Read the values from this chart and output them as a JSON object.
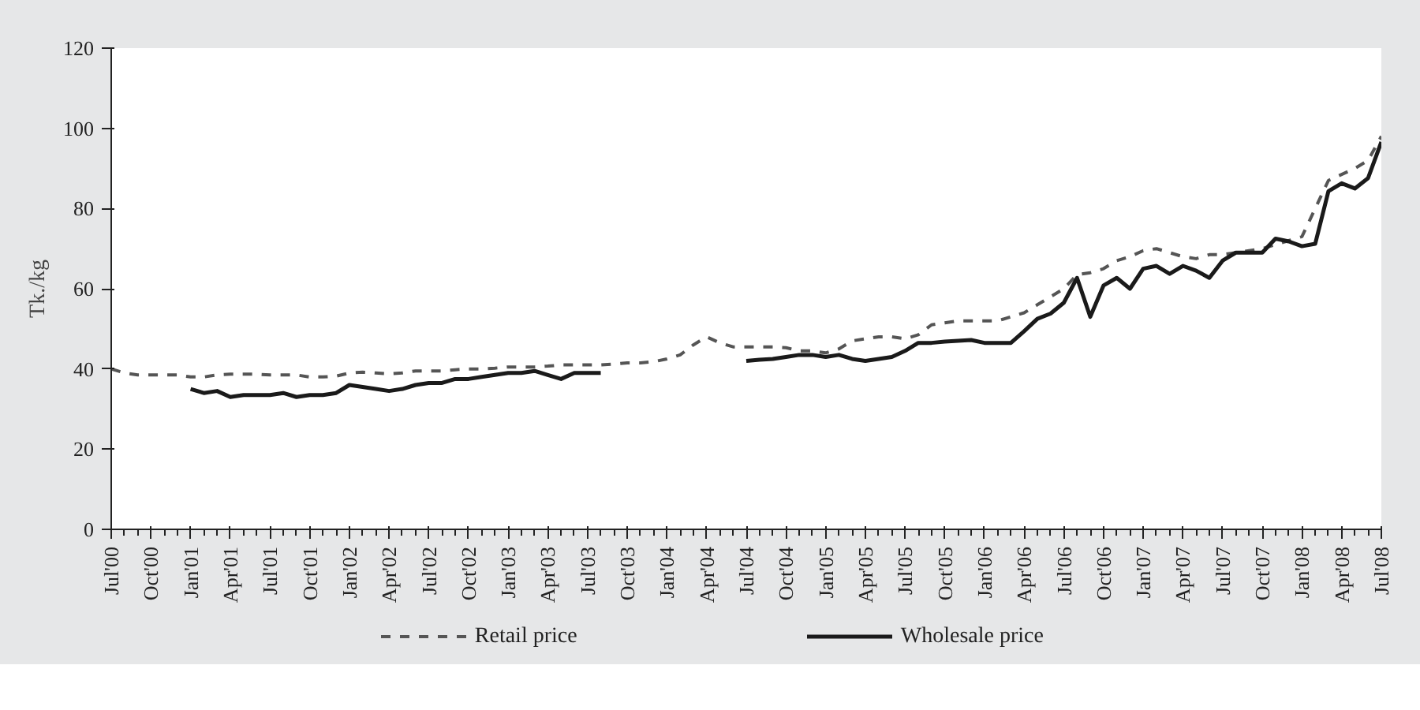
{
  "chart_data": {
    "type": "line",
    "ylabel": "Tk./kg",
    "categories": [
      "Jul'00",
      null,
      null,
      "Oct'00",
      null,
      null,
      "Jan'01",
      null,
      null,
      "Apr'01",
      null,
      null,
      "Jul'01",
      null,
      null,
      "Oct'01",
      null,
      null,
      "Jan'02",
      null,
      null,
      "Apr'02",
      null,
      null,
      "Jul'02",
      null,
      null,
      "Oct'02",
      null,
      null,
      "Jan'03",
      null,
      null,
      "Apr'03",
      null,
      null,
      "Jul'03",
      null,
      null,
      "Oct'03",
      null,
      null,
      "Jan'04",
      null,
      null,
      "Apr'04",
      null,
      null,
      "Jul'04",
      null,
      null,
      "Oct'04",
      null,
      null,
      "Jan'05",
      null,
      null,
      "Apr'05",
      null,
      null,
      "Jul'05",
      null,
      null,
      "Oct'05",
      null,
      null,
      "Jan'06",
      null,
      null,
      "Apr'06",
      null,
      null,
      "Jul'06",
      null,
      null,
      "Oct'06",
      null,
      null,
      "Jan'07",
      null,
      null,
      "Apr'07",
      null,
      null,
      "Jul'07",
      null,
      null,
      "Oct'07",
      null,
      null,
      "Jan'08",
      null,
      null,
      "Apr'08",
      null,
      null,
      "Jul'08"
    ],
    "series": [
      {
        "name": "Retail price",
        "color": "#555555",
        "line_style": "dashed",
        "values": [
          40,
          39,
          38.5,
          38.5,
          38.5,
          38.5,
          38,
          38,
          38.5,
          38.7,
          38.7,
          38.7,
          38.5,
          38.5,
          38.5,
          38,
          38,
          38.2,
          39,
          39.2,
          39,
          38.8,
          39,
          39.5,
          39.5,
          39.5,
          39.8,
          40,
          40,
          40.2,
          40.5,
          40.5,
          40.5,
          40.7,
          41,
          41,
          41,
          41,
          41.2,
          41.5,
          41.5,
          41.8,
          42.5,
          43.5,
          46,
          48,
          46.5,
          45.5,
          45.5,
          45.5,
          45.5,
          45.3,
          44.5,
          44.5,
          44,
          45,
          47,
          47.5,
          48,
          48,
          47.5,
          48.5,
          51,
          51.5,
          52,
          52,
          52,
          52,
          53,
          54,
          56,
          58,
          60,
          63.5,
          64,
          65,
          67,
          68,
          69.5,
          70,
          69,
          68,
          67.5,
          68.5,
          68.5,
          69,
          69.5,
          70,
          71,
          72,
          73,
          80,
          87,
          88.5,
          90,
          92,
          98
        ]
      },
      {
        "name": "Wholesale price",
        "color": "#1a1a1a",
        "line_style": "solid",
        "values": [
          null,
          null,
          null,
          null,
          null,
          null,
          35,
          34,
          34.5,
          33,
          33.5,
          33.5,
          33.5,
          34,
          33,
          33.5,
          33.5,
          34,
          36,
          35.5,
          35,
          34.5,
          35,
          36,
          36.5,
          36.5,
          37.5,
          37.5,
          38,
          38.5,
          39,
          39,
          39.5,
          38.5,
          37.5,
          39,
          39,
          39,
          null,
          null,
          null,
          null,
          null,
          null,
          null,
          null,
          null,
          null,
          42,
          42.3,
          42.5,
          43,
          43.5,
          43.5,
          43,
          43.5,
          42.5,
          42,
          42.5,
          43,
          44.5,
          46.5,
          46.5,
          46.8,
          47,
          47.2,
          46.5,
          46.5,
          46.5,
          49.4,
          52.5,
          53.8,
          56.5,
          62.7,
          53,
          60.8,
          62.7,
          60,
          65,
          65.7,
          63.7,
          65.7,
          64.5,
          62.7,
          67,
          69,
          69,
          69,
          72.5,
          71.8,
          70.6,
          71.2,
          84.3,
          86.3,
          85,
          87.6,
          96.6
        ]
      }
    ],
    "ylim": [
      0,
      120
    ],
    "yticks": [
      0,
      20,
      40,
      60,
      80,
      100,
      120
    ],
    "grid": false,
    "legend": "bottom",
    "marker": "none"
  }
}
